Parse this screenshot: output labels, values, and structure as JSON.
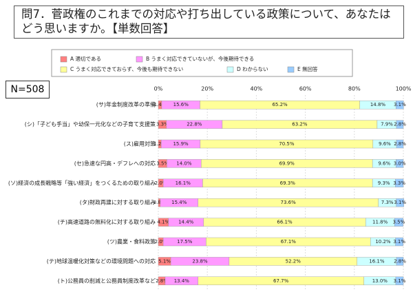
{
  "chart_data": {
    "type": "stacked-bar-horizontal",
    "title": "問7．菅政権のこれまでの対応や打ち出している政策について、あなたはどう思いますか。【単数回答】",
    "n_label": "N=508",
    "categories": [
      "(サ)年金制度改革の準備",
      "(シ)「子ども手当」や幼保一元化などの子育て支援策",
      "(ス)雇用対策",
      "(セ)急速な円高・デフレへの対応",
      "(ソ)経済の成長戦略等「強い経済」をつくるための取り組み",
      "(タ)財政再建に対する取り組み",
      "(チ)高速道路の無料化に対する取り組み",
      "(ツ)農業・食料政策",
      "(テ)地球温暖化対策などの環境問題への対応",
      "(ト)公務員の削減と公務員制度改革など"
    ],
    "series": [
      {
        "name": "A 適切である",
        "color": "#ff8080",
        "values": [
          1.4,
          3.3,
          1.2,
          3.5,
          2.0,
          0.8,
          4.1,
          2.0,
          5.1,
          2.8
        ],
        "value_labels": [
          "1.4%",
          "3.3%",
          "1.2%",
          "3.5%",
          "2.0%",
          "0.8%",
          "4.1%",
          "2.0%",
          "5.1%",
          "2.8%"
        ]
      },
      {
        "name": "B うまく対応できていないが、今後期待できる",
        "color": "#ff99ff",
        "values": [
          15.6,
          22.8,
          15.9,
          14.0,
          16.1,
          15.4,
          14.4,
          17.5,
          23.8,
          13.4
        ],
        "value_labels": [
          "15.6%",
          "22.8%",
          "15.9%",
          "14.0%",
          "16.1%",
          "15.4%",
          "14.4%",
          "17.5%",
          "23.8%",
          "13.4%"
        ]
      },
      {
        "name": "C うまく対応できておらず、今後も期待できない",
        "color": "#ffff99",
        "values": [
          65.2,
          63.2,
          70.5,
          69.9,
          69.3,
          73.6,
          66.1,
          67.1,
          52.2,
          67.7
        ],
        "value_labels": [
          "65.2%",
          "63.2%",
          "70.5%",
          "69.9%",
          "69.3%",
          "73.6%",
          "66.1%",
          "67.1%",
          "52.2%",
          "67.7%"
        ]
      },
      {
        "name": "D わからない",
        "color": "#ccffff",
        "values": [
          14.8,
          7.9,
          9.6,
          9.6,
          9.3,
          7.3,
          11.8,
          10.2,
          16.1,
          13.0
        ],
        "value_labels": [
          "14.8%",
          "7.9%",
          "9.6%",
          "9.6%",
          "9.3%",
          "7.3%",
          "11.8%",
          "10.2%",
          "16.1%",
          "13.0%"
        ]
      },
      {
        "name": "E 無回答",
        "color": "#99ccff",
        "values": [
          3.1,
          2.8,
          2.8,
          3.0,
          3.3,
          3.1,
          3.5,
          3.1,
          2.8,
          3.1
        ],
        "value_labels": [
          "3.1%",
          "2.8%",
          "2.8%",
          "3.0%",
          "3.3%",
          "3.1%",
          "3.5%",
          "3.1%",
          "2.8%",
          "3.1%"
        ]
      }
    ],
    "xlim": [
      0,
      100
    ],
    "xticks": [
      {
        "value": 0,
        "label": "0%"
      },
      {
        "value": 20,
        "label": "20%"
      },
      {
        "value": 40,
        "label": "40%"
      },
      {
        "value": 60,
        "label": "60%"
      },
      {
        "value": 80,
        "label": "80%"
      },
      {
        "value": 100,
        "label": "100%"
      }
    ],
    "grid": true
  }
}
